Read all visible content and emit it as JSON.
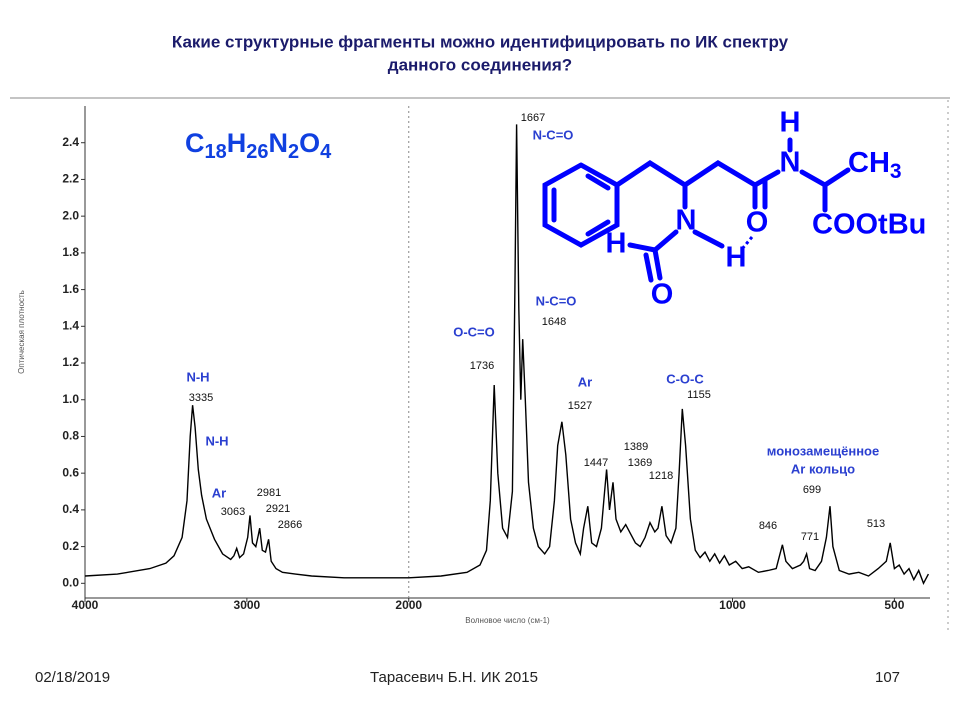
{
  "header": {
    "title_lines": [
      "Какие структурные фрагменты можно идентифицировать по ИК спектру",
      "данного соединения?"
    ]
  },
  "chart_data": {
    "type": "line",
    "formula": "C18H26N2O4",
    "x_label": "Волновое число (см-1)",
    "y_label": "Оптическая плотность",
    "color": "#000000",
    "xlim": [
      4000,
      390
    ],
    "x_break": 2000,
    "xticks": [
      4000,
      3000,
      2000,
      1000,
      500
    ],
    "ylim": [
      -0.08,
      2.6
    ],
    "yticks": [
      {
        "value": 0,
        "label": "0.0"
      },
      0.2,
      0.4,
      0.6,
      0.8,
      {
        "value": 1,
        "label": "1.0"
      },
      1.2,
      1.4,
      1.6,
      1.8,
      {
        "value": 2,
        "label": "2.0"
      },
      2.2,
      2.4
    ],
    "x": [
      4000,
      3800,
      3600,
      3500,
      3450,
      3400,
      3370,
      3350,
      3335,
      3320,
      3300,
      3280,
      3250,
      3200,
      3150,
      3100,
      3080,
      3063,
      3045,
      3020,
      2995,
      2981,
      2965,
      2945,
      2930,
      2921,
      2905,
      2885,
      2866,
      2850,
      2820,
      2780,
      2700,
      2600,
      2400,
      2200,
      2000,
      1900,
      1820,
      1780,
      1760,
      1748,
      1736,
      1725,
      1710,
      1695,
      1680,
      1672,
      1667,
      1660,
      1654,
      1648,
      1640,
      1630,
      1615,
      1600,
      1580,
      1565,
      1550,
      1540,
      1527,
      1515,
      1500,
      1485,
      1470,
      1460,
      1447,
      1435,
      1420,
      1405,
      1395,
      1389,
      1380,
      1369,
      1360,
      1345,
      1330,
      1315,
      1300,
      1285,
      1270,
      1255,
      1240,
      1230,
      1218,
      1205,
      1190,
      1175,
      1165,
      1155,
      1145,
      1130,
      1115,
      1100,
      1085,
      1070,
      1055,
      1040,
      1025,
      1010,
      990,
      970,
      950,
      920,
      890,
      865,
      855,
      846,
      835,
      815,
      790,
      780,
      771,
      762,
      745,
      725,
      710,
      699,
      690,
      670,
      640,
      610,
      580,
      550,
      525,
      513,
      500,
      485,
      470,
      455,
      440,
      425,
      410,
      395
    ],
    "values": [
      0.04,
      0.05,
      0.08,
      0.11,
      0.15,
      0.25,
      0.45,
      0.8,
      0.97,
      0.85,
      0.62,
      0.48,
      0.35,
      0.24,
      0.16,
      0.13,
      0.15,
      0.19,
      0.14,
      0.16,
      0.25,
      0.37,
      0.22,
      0.2,
      0.26,
      0.3,
      0.18,
      0.17,
      0.24,
      0.12,
      0.08,
      0.06,
      0.05,
      0.04,
      0.03,
      0.03,
      0.03,
      0.04,
      0.06,
      0.1,
      0.18,
      0.45,
      1.08,
      0.6,
      0.3,
      0.25,
      0.5,
      1.6,
      2.5,
      1.5,
      1.0,
      1.33,
      1.0,
      0.55,
      0.3,
      0.2,
      0.16,
      0.2,
      0.45,
      0.75,
      0.88,
      0.7,
      0.35,
      0.22,
      0.16,
      0.3,
      0.42,
      0.22,
      0.2,
      0.3,
      0.5,
      0.62,
      0.4,
      0.55,
      0.35,
      0.28,
      0.32,
      0.27,
      0.22,
      0.2,
      0.25,
      0.33,
      0.28,
      0.3,
      0.42,
      0.26,
      0.22,
      0.3,
      0.6,
      0.95,
      0.75,
      0.35,
      0.18,
      0.14,
      0.17,
      0.12,
      0.16,
      0.11,
      0.15,
      0.1,
      0.12,
      0.08,
      0.09,
      0.06,
      0.07,
      0.08,
      0.15,
      0.21,
      0.12,
      0.08,
      0.1,
      0.12,
      0.16,
      0.08,
      0.07,
      0.12,
      0.25,
      0.42,
      0.2,
      0.07,
      0.05,
      0.06,
      0.04,
      0.08,
      0.12,
      0.22,
      0.08,
      0.1,
      0.05,
      0.08,
      0.02,
      0.07,
      0.0,
      0.05
    ],
    "peak_labels": [
      3335,
      3063,
      2981,
      2921,
      2866,
      1736,
      1667,
      1648,
      1527,
      1447,
      1389,
      1369,
      1218,
      1155,
      846,
      771,
      699,
      513
    ],
    "annotations": [
      "N-H",
      "N-H",
      "Ar",
      "O-C=O",
      "N-C=O",
      "N-C=O",
      "Ar",
      "C-O-C",
      "монозамещённое",
      "Ar кольцо"
    ]
  },
  "structure": {
    "labels": [
      "H",
      "N",
      "CH3",
      "O",
      "COOtBu",
      "N",
      "H",
      "H",
      "O"
    ]
  },
  "footer": {
    "date": "02/18/2019",
    "author": "Тарасевич Б.Н.  ИК 2015",
    "page": "107"
  }
}
